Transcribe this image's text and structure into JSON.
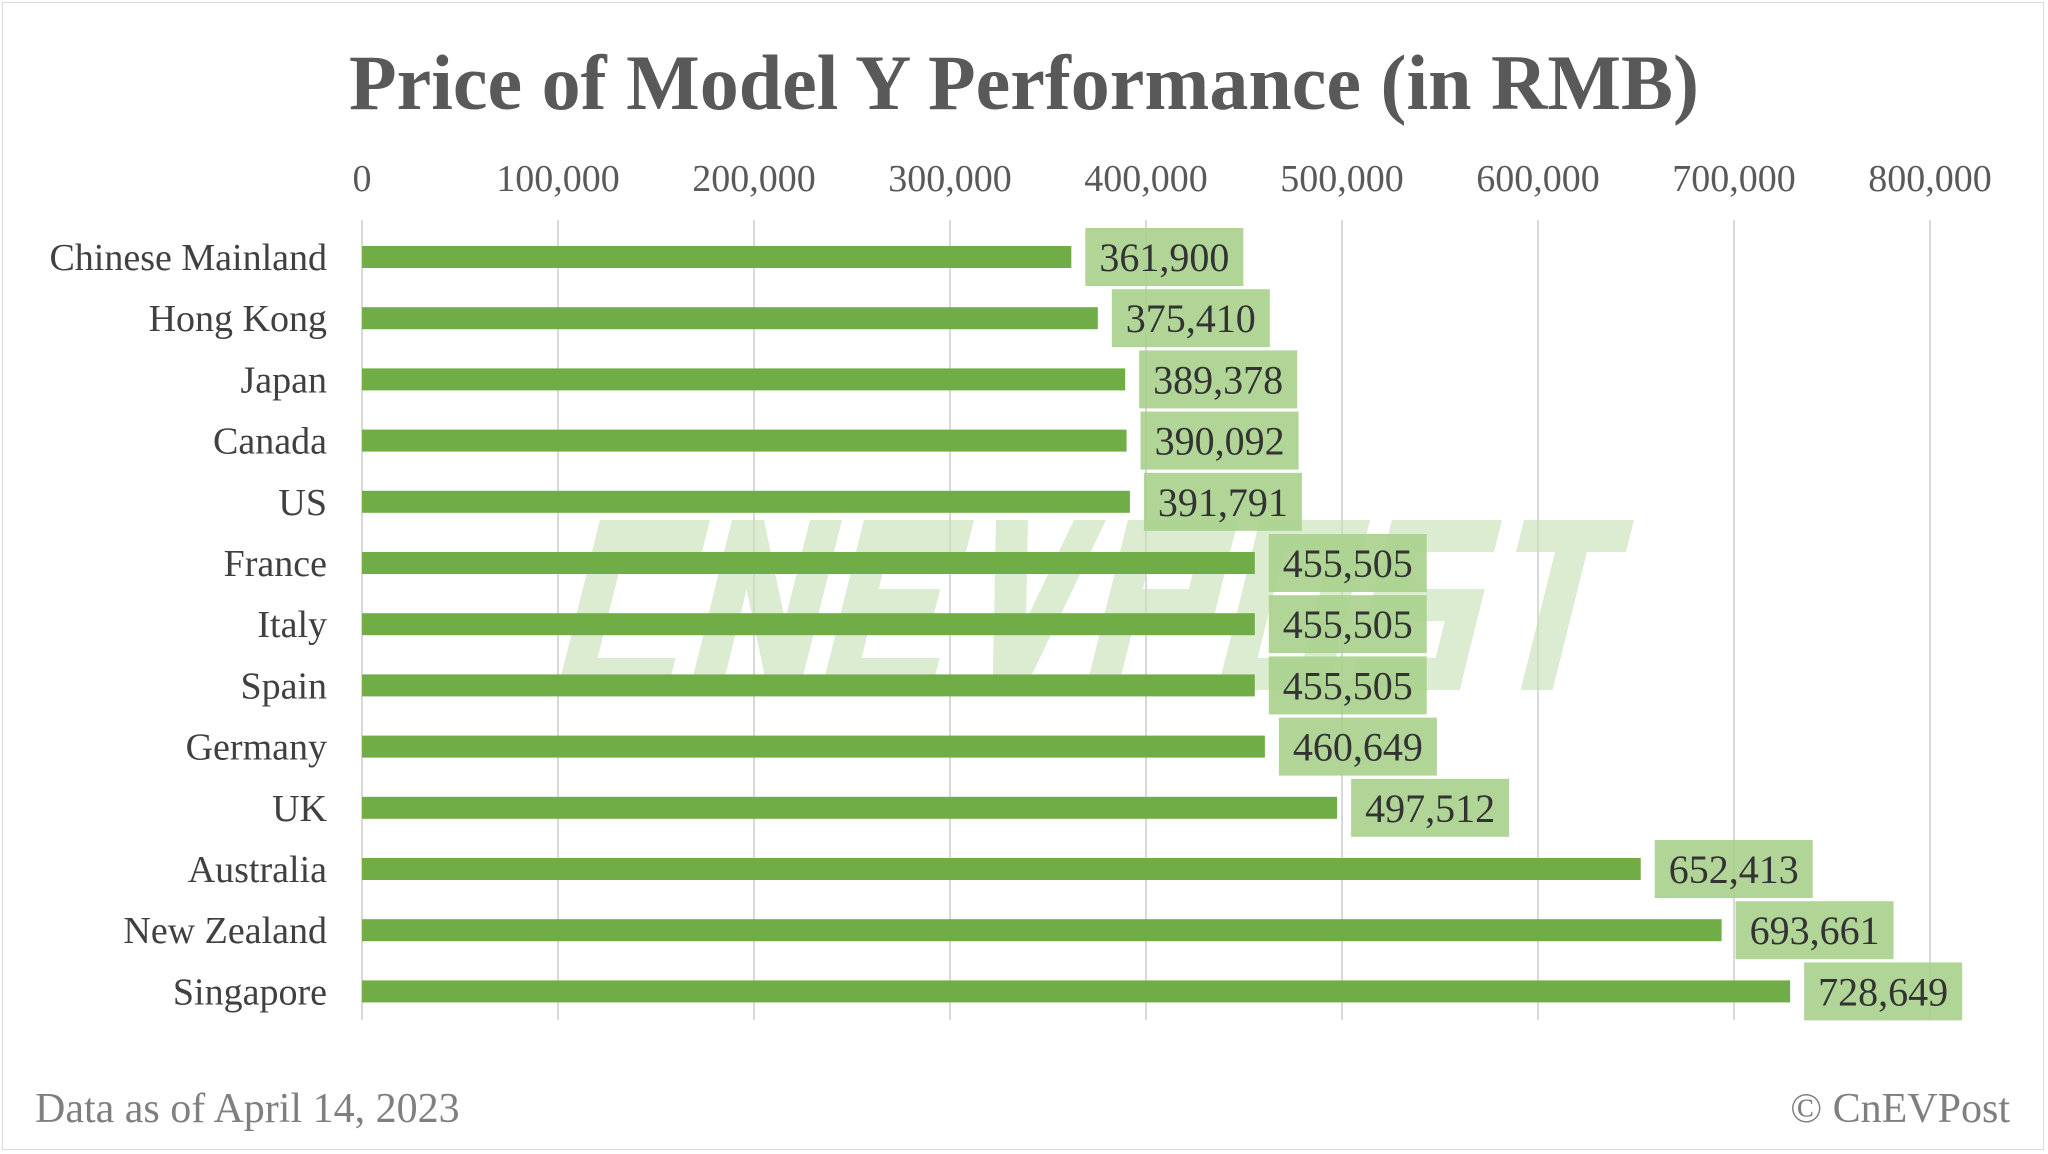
{
  "chart_data": {
    "type": "bar",
    "orientation": "horizontal",
    "title": "Price of Model Y Performance (in RMB)",
    "categories": [
      "Chinese Mainland",
      "Hong Kong",
      "Japan",
      "Canada",
      "US",
      "France",
      "Italy",
      "Spain",
      "Germany",
      "UK",
      "Australia",
      "New Zealand",
      "Singapore"
    ],
    "values": [
      361900,
      375410,
      389378,
      390092,
      391791,
      455505,
      455505,
      455505,
      460649,
      497512,
      652413,
      693661,
      728649
    ],
    "data_labels": [
      "361,900",
      "375,410",
      "389,378",
      "390,092",
      "391,791",
      "455,505",
      "455,505",
      "455,505",
      "460,649",
      "497,512",
      "652,413",
      "693,661",
      "728,649"
    ],
    "xlim": [
      0,
      800000
    ],
    "x_ticks": [
      "0",
      "100,000",
      "200,000",
      "300,000",
      "400,000",
      "500,000",
      "600,000",
      "700,000",
      "800,000"
    ],
    "x_axis_position": "top",
    "grid": "vertical",
    "legend": "none",
    "colors": {
      "bar": "#70ad47",
      "label_box": "#a9d18e",
      "grid": "#d9d9d9",
      "watermark": "#c5e0b4"
    }
  },
  "footer": {
    "left": "Data as of April 14, 2023",
    "right": "© CnEVPost"
  },
  "watermark": "CnEVPost"
}
